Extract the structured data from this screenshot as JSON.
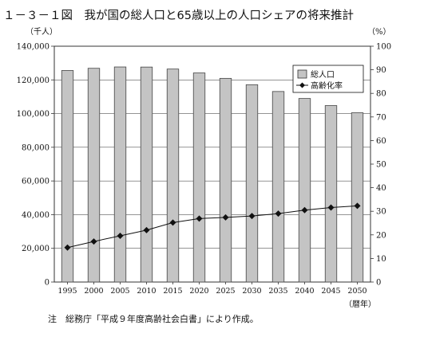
{
  "title": "１－３－１図　我が国の総人口と65歳以上の人口シェアの将来推計",
  "note": "注　総務庁「平成９年度高齢社会白書」により作成。",
  "chart_data": {
    "type": "bar",
    "categories": [
      "1995",
      "2000",
      "2005",
      "2010",
      "2015",
      "2020",
      "2025",
      "2030",
      "2035",
      "2040",
      "2045",
      "2050"
    ],
    "series": [
      {
        "name": "総人口",
        "type": "bar",
        "axis": "left",
        "values": [
          125570,
          126892,
          127684,
          127623,
          126444,
          124133,
          120913,
          117149,
          113114,
          108964,
          104758,
          100496
        ]
      },
      {
        "name": "高齢化率",
        "type": "line",
        "axis": "right",
        "values": [
          14.6,
          17.2,
          19.6,
          22.0,
          25.2,
          26.9,
          27.4,
          28.0,
          29.0,
          30.5,
          31.6,
          32.3
        ]
      }
    ],
    "y_left": {
      "unit": "（千人）",
      "ylim": [
        0,
        140000
      ],
      "ticks": [
        "0",
        "20,000",
        "40,000",
        "60,000",
        "80,000",
        "100,000",
        "120,000",
        "140,000"
      ]
    },
    "y_right": {
      "unit": "（%）",
      "ylim": [
        0,
        100
      ],
      "ticks": [
        "0",
        "10",
        "20",
        "30",
        "40",
        "50",
        "60",
        "70",
        "80",
        "90",
        "100"
      ]
    },
    "x_unit": "（暦年）",
    "grid": true,
    "legend_position": "top-right",
    "colors": {
      "bar": "#c4c4c4",
      "line": "#111111",
      "grid": "#555555"
    }
  }
}
